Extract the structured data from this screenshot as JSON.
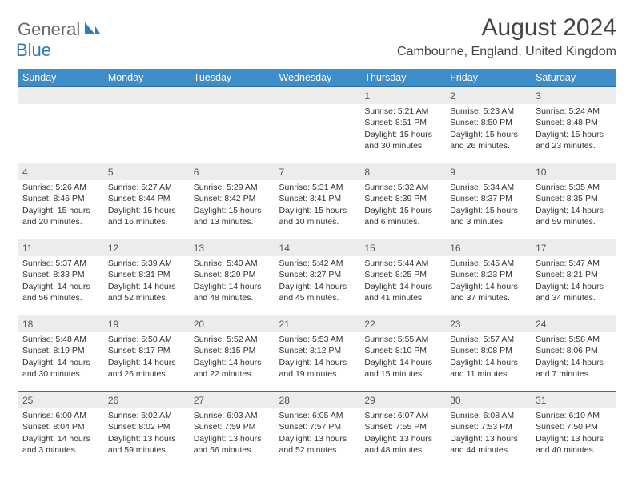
{
  "logo": {
    "part1": "General",
    "part2": "Blue"
  },
  "title": "August 2024",
  "location": "Cambourne, England, United Kingdom",
  "colors": {
    "header_bg": "#3e8cc8",
    "header_text": "#ffffff",
    "row_border": "#2f6fa3",
    "daynum_bg": "#ececec",
    "logo_gray": "#6a6a6a",
    "logo_blue": "#2f7ab8",
    "page_bg": "#ffffff"
  },
  "columns": [
    "Sunday",
    "Monday",
    "Tuesday",
    "Wednesday",
    "Thursday",
    "Friday",
    "Saturday"
  ],
  "weeks": [
    [
      null,
      null,
      null,
      null,
      {
        "n": "1",
        "sunrise": "5:21 AM",
        "sunset": "8:51 PM",
        "daylight": "15 hours and 30 minutes."
      },
      {
        "n": "2",
        "sunrise": "5:23 AM",
        "sunset": "8:50 PM",
        "daylight": "15 hours and 26 minutes."
      },
      {
        "n": "3",
        "sunrise": "5:24 AM",
        "sunset": "8:48 PM",
        "daylight": "15 hours and 23 minutes."
      }
    ],
    [
      {
        "n": "4",
        "sunrise": "5:26 AM",
        "sunset": "8:46 PM",
        "daylight": "15 hours and 20 minutes."
      },
      {
        "n": "5",
        "sunrise": "5:27 AM",
        "sunset": "8:44 PM",
        "daylight": "15 hours and 16 minutes."
      },
      {
        "n": "6",
        "sunrise": "5:29 AM",
        "sunset": "8:42 PM",
        "daylight": "15 hours and 13 minutes."
      },
      {
        "n": "7",
        "sunrise": "5:31 AM",
        "sunset": "8:41 PM",
        "daylight": "15 hours and 10 minutes."
      },
      {
        "n": "8",
        "sunrise": "5:32 AM",
        "sunset": "8:39 PM",
        "daylight": "15 hours and 6 minutes."
      },
      {
        "n": "9",
        "sunrise": "5:34 AM",
        "sunset": "8:37 PM",
        "daylight": "15 hours and 3 minutes."
      },
      {
        "n": "10",
        "sunrise": "5:35 AM",
        "sunset": "8:35 PM",
        "daylight": "14 hours and 59 minutes."
      }
    ],
    [
      {
        "n": "11",
        "sunrise": "5:37 AM",
        "sunset": "8:33 PM",
        "daylight": "14 hours and 56 minutes."
      },
      {
        "n": "12",
        "sunrise": "5:39 AM",
        "sunset": "8:31 PM",
        "daylight": "14 hours and 52 minutes."
      },
      {
        "n": "13",
        "sunrise": "5:40 AM",
        "sunset": "8:29 PM",
        "daylight": "14 hours and 48 minutes."
      },
      {
        "n": "14",
        "sunrise": "5:42 AM",
        "sunset": "8:27 PM",
        "daylight": "14 hours and 45 minutes."
      },
      {
        "n": "15",
        "sunrise": "5:44 AM",
        "sunset": "8:25 PM",
        "daylight": "14 hours and 41 minutes."
      },
      {
        "n": "16",
        "sunrise": "5:45 AM",
        "sunset": "8:23 PM",
        "daylight": "14 hours and 37 minutes."
      },
      {
        "n": "17",
        "sunrise": "5:47 AM",
        "sunset": "8:21 PM",
        "daylight": "14 hours and 34 minutes."
      }
    ],
    [
      {
        "n": "18",
        "sunrise": "5:48 AM",
        "sunset": "8:19 PM",
        "daylight": "14 hours and 30 minutes."
      },
      {
        "n": "19",
        "sunrise": "5:50 AM",
        "sunset": "8:17 PM",
        "daylight": "14 hours and 26 minutes."
      },
      {
        "n": "20",
        "sunrise": "5:52 AM",
        "sunset": "8:15 PM",
        "daylight": "14 hours and 22 minutes."
      },
      {
        "n": "21",
        "sunrise": "5:53 AM",
        "sunset": "8:12 PM",
        "daylight": "14 hours and 19 minutes."
      },
      {
        "n": "22",
        "sunrise": "5:55 AM",
        "sunset": "8:10 PM",
        "daylight": "14 hours and 15 minutes."
      },
      {
        "n": "23",
        "sunrise": "5:57 AM",
        "sunset": "8:08 PM",
        "daylight": "14 hours and 11 minutes."
      },
      {
        "n": "24",
        "sunrise": "5:58 AM",
        "sunset": "8:06 PM",
        "daylight": "14 hours and 7 minutes."
      }
    ],
    [
      {
        "n": "25",
        "sunrise": "6:00 AM",
        "sunset": "8:04 PM",
        "daylight": "14 hours and 3 minutes."
      },
      {
        "n": "26",
        "sunrise": "6:02 AM",
        "sunset": "8:02 PM",
        "daylight": "13 hours and 59 minutes."
      },
      {
        "n": "27",
        "sunrise": "6:03 AM",
        "sunset": "7:59 PM",
        "daylight": "13 hours and 56 minutes."
      },
      {
        "n": "28",
        "sunrise": "6:05 AM",
        "sunset": "7:57 PM",
        "daylight": "13 hours and 52 minutes."
      },
      {
        "n": "29",
        "sunrise": "6:07 AM",
        "sunset": "7:55 PM",
        "daylight": "13 hours and 48 minutes."
      },
      {
        "n": "30",
        "sunrise": "6:08 AM",
        "sunset": "7:53 PM",
        "daylight": "13 hours and 44 minutes."
      },
      {
        "n": "31",
        "sunrise": "6:10 AM",
        "sunset": "7:50 PM",
        "daylight": "13 hours and 40 minutes."
      }
    ]
  ],
  "labels": {
    "sunrise": "Sunrise: ",
    "sunset": "Sunset: ",
    "daylight": "Daylight: "
  }
}
